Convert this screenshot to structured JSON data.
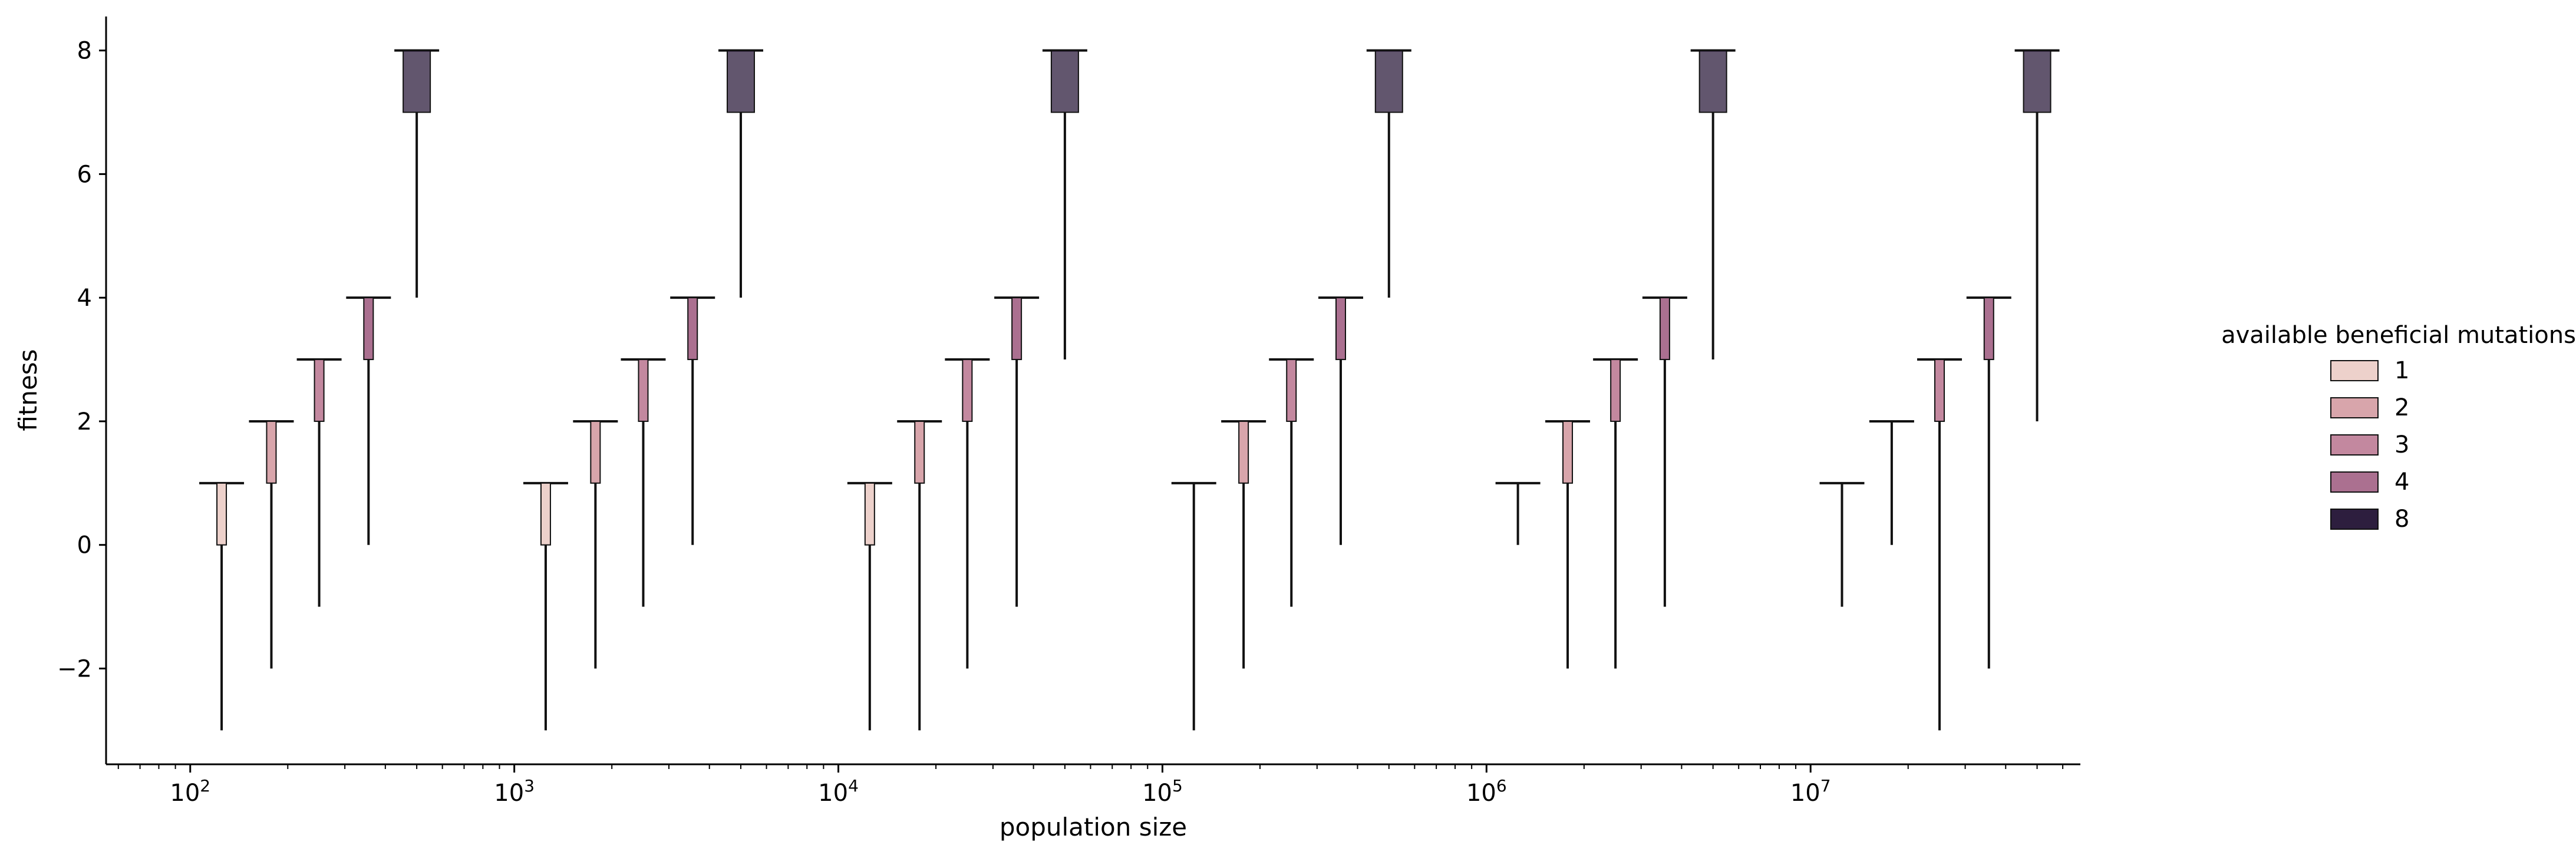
{
  "chart_data": {
    "type": "boxen",
    "xlabel": "population size",
    "ylabel": "fitness",
    "x_scale": "log",
    "xlim": [
      55,
      68000000
    ],
    "ylim": [
      -3.55,
      8.55
    ],
    "y_ticks": [
      -2,
      0,
      2,
      4,
      6,
      8
    ],
    "y_tick_labels": [
      "−2",
      "0",
      "2",
      "4",
      "6",
      "8"
    ],
    "x_major_ticks": [
      100,
      1000,
      10000,
      100000,
      1000000,
      10000000
    ],
    "x_tick_bases": [
      "10",
      "10",
      "10",
      "10",
      "10",
      "10"
    ],
    "x_tick_exponents": [
      "2",
      "3",
      "4",
      "5",
      "6",
      "7"
    ],
    "grid": false,
    "legend": {
      "title": "available beneficial mutations",
      "placement": "right",
      "entries": [
        {
          "label": "1",
          "color": "#edd1cb"
        },
        {
          "label": "2",
          "color": "#d8a5ab"
        },
        {
          "label": "3",
          "color": "#c3889f"
        },
        {
          "label": "4",
          "color": "#ab7090"
        },
        {
          "label": "8",
          "color": "#2d1e3e"
        }
      ]
    },
    "series": [
      {
        "name": "1",
        "color": "#edd1cb",
        "boxes": [
          {
            "x": 125,
            "max": 1,
            "q3": 1,
            "q1": 0,
            "min": -3
          },
          {
            "x": 1250,
            "max": 1,
            "q3": 1,
            "q1": 0,
            "min": -3
          },
          {
            "x": 12500,
            "max": 1,
            "q3": 1,
            "q1": 0,
            "min": -3
          },
          {
            "x": 125000,
            "max": 1,
            "q3": 1,
            "q1": 1,
            "min": -3
          },
          {
            "x": 1250000,
            "max": 1,
            "q3": 1,
            "q1": 1,
            "min": 0
          },
          {
            "x": 12500000,
            "max": 1,
            "q3": 1,
            "q1": 1,
            "min": -1
          }
        ]
      },
      {
        "name": "2",
        "color": "#d8a5ab",
        "boxes": [
          {
            "x": 178,
            "max": 2,
            "q3": 2,
            "q1": 1,
            "min": -2
          },
          {
            "x": 1780,
            "max": 2,
            "q3": 2,
            "q1": 1,
            "min": -2
          },
          {
            "x": 17800,
            "max": 2,
            "q3": 2,
            "q1": 1,
            "min": -3
          },
          {
            "x": 178000,
            "max": 2,
            "q3": 2,
            "q1": 1,
            "min": -2
          },
          {
            "x": 1780000,
            "max": 2,
            "q3": 2,
            "q1": 1,
            "min": -2
          },
          {
            "x": 17800000,
            "max": 2,
            "q3": 2,
            "q1": 2,
            "min": 0
          }
        ]
      },
      {
        "name": "3",
        "color": "#c3889f",
        "boxes": [
          {
            "x": 250,
            "max": 3,
            "q3": 3,
            "q1": 2,
            "min": -1
          },
          {
            "x": 2500,
            "max": 3,
            "q3": 3,
            "q1": 2,
            "min": -1
          },
          {
            "x": 25000,
            "max": 3,
            "q3": 3,
            "q1": 2,
            "min": -2
          },
          {
            "x": 250000,
            "max": 3,
            "q3": 3,
            "q1": 2,
            "min": -1
          },
          {
            "x": 2500000,
            "max": 3,
            "q3": 3,
            "q1": 2,
            "min": -2
          },
          {
            "x": 25000000,
            "max": 3,
            "q3": 3,
            "q1": 2,
            "min": -3
          }
        ]
      },
      {
        "name": "4",
        "color": "#ab7090",
        "boxes": [
          {
            "x": 355,
            "max": 4,
            "q3": 4,
            "q1": 3,
            "min": 0
          },
          {
            "x": 3550,
            "max": 4,
            "q3": 4,
            "q1": 3,
            "min": 0
          },
          {
            "x": 35500,
            "max": 4,
            "q3": 4,
            "q1": 3,
            "min": -1
          },
          {
            "x": 355000,
            "max": 4,
            "q3": 4,
            "q1": 3,
            "min": 0
          },
          {
            "x": 3550000,
            "max": 4,
            "q3": 4,
            "q1": 3,
            "min": -1
          },
          {
            "x": 35500000,
            "max": 4,
            "q3": 4,
            "q1": 3,
            "min": -2
          }
        ]
      },
      {
        "name": "8",
        "color": "#2d1e3e",
        "boxes": [
          {
            "x": 500,
            "max": 8,
            "q3": 8,
            "q1": 7,
            "min": 4
          },
          {
            "x": 5000,
            "max": 8,
            "q3": 8,
            "q1": 7,
            "min": 4
          },
          {
            "x": 50000,
            "max": 8,
            "q3": 8,
            "q1": 7,
            "min": 3
          },
          {
            "x": 500000,
            "max": 8,
            "q3": 8,
            "q1": 7,
            "min": 4
          },
          {
            "x": 5000000,
            "max": 8,
            "q3": 8,
            "q1": 7,
            "min": 3
          },
          {
            "x": 50000000,
            "max": 8,
            "q3": 8,
            "q1": 7,
            "min": 2
          }
        ]
      }
    ]
  }
}
